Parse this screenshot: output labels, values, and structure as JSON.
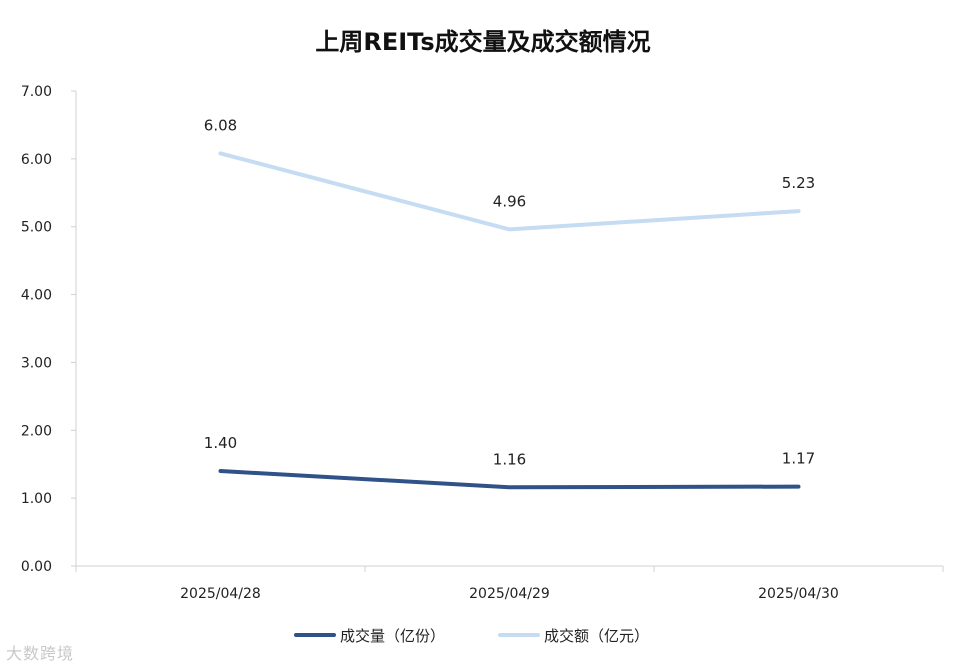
{
  "chart_data": {
    "type": "line",
    "title": "上周REITs成交量及成交额情况",
    "categories": [
      "2025/04/28",
      "2025/04/29",
      "2025/04/30"
    ],
    "series": [
      {
        "name": "成交量（亿份）",
        "values": [
          1.4,
          1.16,
          1.17
        ],
        "labels": [
          "1.40",
          "1.16",
          "1.17"
        ],
        "color": "#2f5289"
      },
      {
        "name": "成交额（亿元）",
        "values": [
          6.08,
          4.96,
          5.23
        ],
        "labels": [
          "6.08",
          "4.96",
          "5.23"
        ],
        "color": "#c5dcf3"
      }
    ],
    "ylim": [
      0,
      7
    ],
    "yticks": [
      "0.00",
      "1.00",
      "2.00",
      "3.00",
      "4.00",
      "5.00",
      "6.00",
      "7.00"
    ],
    "grid": false,
    "legend": "bottom"
  },
  "watermark": "大数跨境"
}
